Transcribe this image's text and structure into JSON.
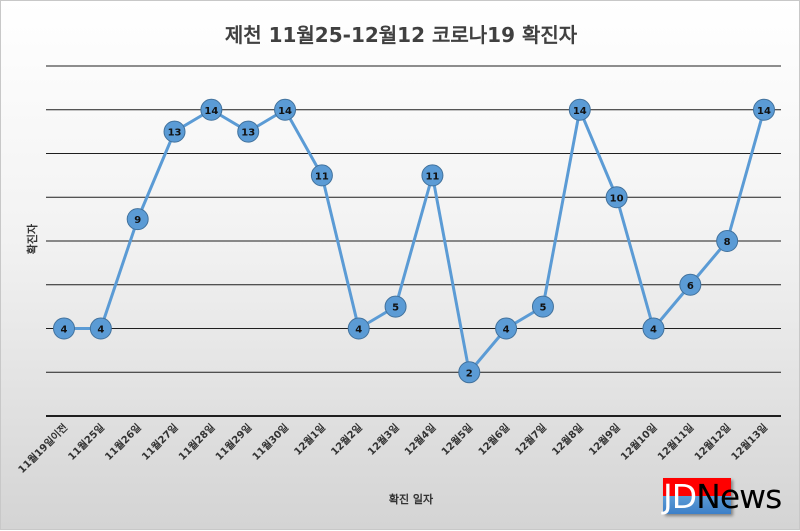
{
  "chart_data": {
    "type": "line",
    "title": "제천 11월25-12월12 코로나19 확진자",
    "xlabel": "확진 일자",
    "ylabel": "확진자",
    "categories": [
      "11월19일이전",
      "11월25일",
      "11월26일",
      "11월27일",
      "11월28일",
      "11월29일",
      "11월30일",
      "12월1일",
      "12월2일",
      "12월3일",
      "12월4일",
      "12월5일",
      "12월6일",
      "12월7일",
      "12월8일",
      "12월9일",
      "12월10일",
      "12월11일",
      "12월12일",
      "12월13일"
    ],
    "series": [
      {
        "name": "확진자",
        "values": [
          4,
          4,
          9,
          13,
          14,
          13,
          14,
          11,
          4,
          5,
          11,
          2,
          4,
          5,
          14,
          10,
          4,
          6,
          8,
          14
        ]
      }
    ],
    "ylim": [
      0,
      16
    ],
    "ytick_step": 2,
    "grid": true,
    "legend": "none",
    "colors": {
      "line": "#5b9bd5",
      "marker": "#5b9bd5",
      "grid": "#1f1f1f"
    }
  },
  "logo": {
    "text_part1": "JD",
    "text_part2": "N",
    "text_part3": "ews"
  }
}
